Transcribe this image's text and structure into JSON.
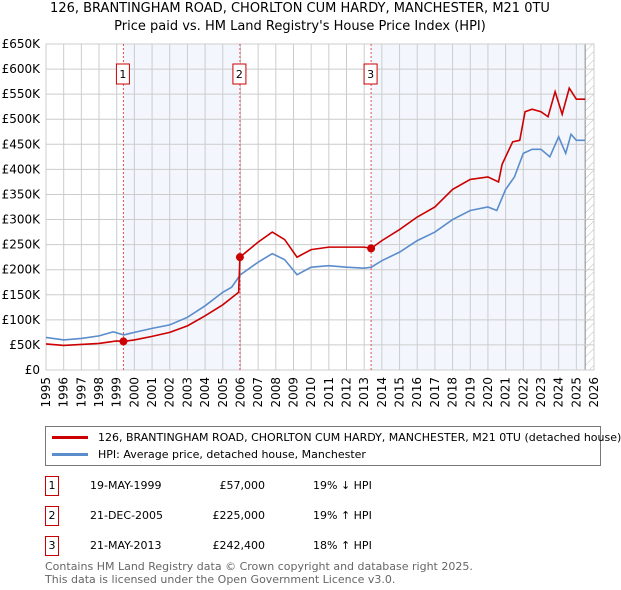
{
  "chart_data": {
    "type": "line",
    "title": "126, BRANTINGHAM ROAD, CHORLTON CUM HARDY, MANCHESTER, M21 0TU",
    "subtitle": "Price paid vs. HM Land Registry's House Price Index (HPI)",
    "xlim": [
      1995,
      2026
    ],
    "ylim": [
      0,
      650000
    ],
    "x_ticks": [
      "1995",
      "1996",
      "1997",
      "1998",
      "1999",
      "2000",
      "2001",
      "2002",
      "2003",
      "2004",
      "2005",
      "2006",
      "2007",
      "2008",
      "2009",
      "2010",
      "2011",
      "2012",
      "2013",
      "2014",
      "2015",
      "2016",
      "2017",
      "2018",
      "2019",
      "2020",
      "2021",
      "2022",
      "2023",
      "2024",
      "2025",
      "2026"
    ],
    "y_ticks": [
      "£0",
      "£50K",
      "£100K",
      "£150K",
      "£200K",
      "£250K",
      "£300K",
      "£350K",
      "£400K",
      "£450K",
      "£500K",
      "£550K",
      "£600K",
      "£650K"
    ],
    "grid": true,
    "series": [
      {
        "name": "126, BRANTINGHAM ROAD, CHORLTON CUM HARDY, MANCHESTER, M21 0TU (detached house)",
        "color": "#cc0000",
        "x": [
          1995,
          1996,
          1997,
          1998,
          1999,
          1999.38,
          2000,
          2001,
          2002,
          2003,
          2004,
          2005,
          2005.9,
          2005.97,
          2007,
          2007.8,
          2008.5,
          2009.2,
          2010,
          2011,
          2012,
          2013,
          2013.39,
          2014,
          2015,
          2016,
          2017,
          2018,
          2019,
          2020,
          2020.6,
          2020.8,
          2021.4,
          2021.8,
          2022.1,
          2022.5,
          2023,
          2023.4,
          2023.8,
          2024.2,
          2024.6,
          2025,
          2025.5
        ],
        "y": [
          52000,
          49000,
          51000,
          53000,
          58000,
          57000,
          60000,
          67000,
          75000,
          88000,
          108000,
          130000,
          155000,
          225000,
          255000,
          275000,
          260000,
          225000,
          240000,
          245000,
          245000,
          245000,
          242400,
          258000,
          280000,
          305000,
          325000,
          360000,
          380000,
          385000,
          375000,
          410000,
          455000,
          458000,
          515000,
          520000,
          515000,
          505000,
          555000,
          510000,
          562000,
          540000,
          540000
        ]
      },
      {
        "name": "HPI: Average price, detached house, Manchester",
        "color": "#5b8ccc",
        "x": [
          1995,
          1996,
          1997,
          1998,
          1998.8,
          1999.4,
          2000,
          2001,
          2002,
          2003,
          2004,
          2005,
          2005.5,
          2006,
          2007,
          2007.8,
          2008.5,
          2009.2,
          2010,
          2011,
          2012,
          2013,
          2013.4,
          2014,
          2015,
          2016,
          2017,
          2018,
          2019,
          2020,
          2020.5,
          2021,
          2021.5,
          2022,
          2022.5,
          2023,
          2023.5,
          2024,
          2024.4,
          2024.7,
          2025,
          2025.5
        ],
        "y": [
          65000,
          60000,
          63000,
          68000,
          76000,
          70000,
          75000,
          83000,
          90000,
          105000,
          128000,
          155000,
          165000,
          190000,
          215000,
          232000,
          220000,
          190000,
          205000,
          208000,
          205000,
          203000,
          205000,
          218000,
          235000,
          258000,
          275000,
          300000,
          318000,
          325000,
          318000,
          360000,
          385000,
          432000,
          440000,
          440000,
          425000,
          465000,
          432000,
          470000,
          458000,
          458000
        ]
      }
    ],
    "sales": [
      {
        "label": "1",
        "x": 1999.38,
        "y": 57000
      },
      {
        "label": "2",
        "x": 2005.97,
        "y": 225000
      },
      {
        "label": "3",
        "x": 2013.39,
        "y": 242400
      }
    ],
    "shaded_periods": [
      [
        1999.38,
        2005.97
      ],
      [
        2013.39,
        2025.5
      ]
    ]
  },
  "legend": {
    "property": "126, BRANTINGHAM ROAD, CHORLTON CUM HARDY, MANCHESTER, M21 0TU (detached house)",
    "hpi": "HPI: Average price, detached house, Manchester"
  },
  "transactions": [
    {
      "num": "1",
      "date": "19-MAY-1999",
      "price": "£57,000",
      "hpi": "19% ↓ HPI"
    },
    {
      "num": "2",
      "date": "21-DEC-2005",
      "price": "£225,000",
      "hpi": "19% ↑ HPI"
    },
    {
      "num": "3",
      "date": "21-MAY-2013",
      "price": "£242,400",
      "hpi": "18% ↑ HPI"
    }
  ],
  "footer": {
    "line1": "Contains HM Land Registry data © Crown copyright and database right 2025.",
    "line2": "This data is licensed under the Open Government Licence v3.0."
  }
}
